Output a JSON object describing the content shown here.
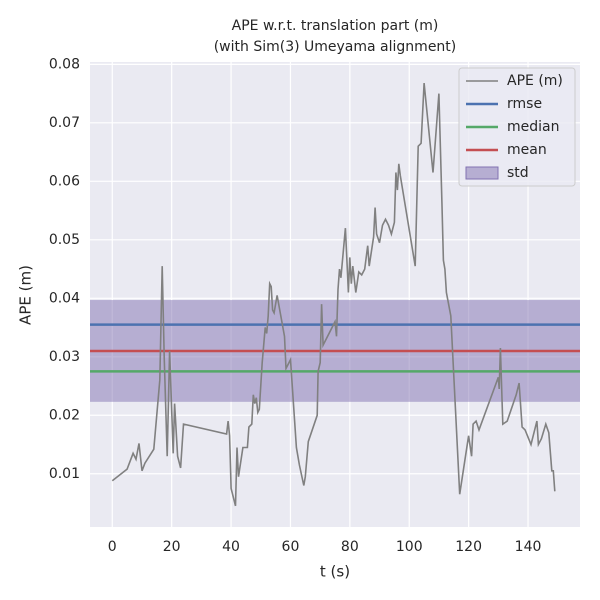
{
  "chart_data": {
    "type": "line",
    "title": "APE w.r.t. translation part (m)",
    "subtitle": "(with Sim(3) Umeyama alignment)",
    "xlabel": "t (s)",
    "ylabel": "APE (m)",
    "x": [
      0,
      5,
      7,
      8,
      9,
      10,
      11,
      14,
      16,
      16.8,
      17.5,
      18.5,
      19.3,
      20.5,
      21,
      22,
      23,
      24,
      38.5,
      39,
      39.5,
      40,
      41.5,
      42,
      42.5,
      44,
      45.5,
      46,
      47,
      47.5,
      48,
      48.5,
      49,
      49.5,
      50.5,
      51.5,
      52,
      52.5,
      53,
      53.5,
      54,
      54.5,
      55.5,
      58,
      58.5,
      60,
      62,
      63,
      64.5,
      65,
      66,
      69,
      69.3,
      70,
      70.5,
      71,
      75,
      75.5,
      76,
      76.5,
      77,
      78.5,
      79.5,
      80,
      80.5,
      81,
      82,
      83,
      84,
      85,
      86,
      86.5,
      88,
      88.5,
      89,
      90,
      91,
      92,
      93,
      94,
      95,
      95.5,
      96,
      96.5,
      97,
      102,
      103,
      104,
      105,
      108,
      110,
      111,
      111.5,
      112,
      112.5,
      114,
      117,
      120,
      121,
      121.5,
      122.5,
      123.5,
      130,
      130.3,
      130.7,
      131.5,
      133,
      136,
      137,
      138,
      139,
      141,
      143,
      143.5,
      144.5,
      146,
      147,
      148,
      148.5,
      149
    ],
    "series": [
      {
        "name": "APE (m)",
        "color": "#808080",
        "values": [
          0.0088,
          0.0108,
          0.0135,
          0.0125,
          0.0152,
          0.0105,
          0.0118,
          0.0142,
          0.026,
          0.0455,
          0.03,
          0.013,
          0.031,
          0.0135,
          0.022,
          0.013,
          0.011,
          0.0185,
          0.0168,
          0.019,
          0.0165,
          0.0075,
          0.0045,
          0.0145,
          0.0095,
          0.0145,
          0.0145,
          0.018,
          0.0185,
          0.0235,
          0.022,
          0.023,
          0.0205,
          0.021,
          0.029,
          0.035,
          0.034,
          0.037,
          0.0425,
          0.042,
          0.038,
          0.0375,
          0.0405,
          0.0335,
          0.028,
          0.0295,
          0.0145,
          0.0115,
          0.008,
          0.0095,
          0.0155,
          0.02,
          0.0275,
          0.029,
          0.039,
          0.032,
          0.036,
          0.0335,
          0.0415,
          0.045,
          0.0435,
          0.052,
          0.041,
          0.047,
          0.0425,
          0.0455,
          0.041,
          0.0445,
          0.044,
          0.045,
          0.049,
          0.0455,
          0.0505,
          0.0555,
          0.051,
          0.0495,
          0.0525,
          0.0535,
          0.0525,
          0.051,
          0.053,
          0.0615,
          0.0585,
          0.063,
          0.061,
          0.0455,
          0.066,
          0.0665,
          0.0768,
          0.0615,
          0.075,
          0.0565,
          0.0465,
          0.045,
          0.041,
          0.037,
          0.0065,
          0.0165,
          0.013,
          0.0185,
          0.019,
          0.0175,
          0.0265,
          0.0245,
          0.0315,
          0.0185,
          0.019,
          0.0235,
          0.0255,
          0.018,
          0.0175,
          0.015,
          0.019,
          0.015,
          0.016,
          0.0185,
          0.017,
          0.0105,
          0.0105,
          0.007
        ]
      },
      {
        "name": "rmse",
        "color": "#4c72b0",
        "value": 0.0355
      },
      {
        "name": "median",
        "color": "#55a868",
        "value": 0.0275
      },
      {
        "name": "mean",
        "color": "#c44e52",
        "value": 0.031
      },
      {
        "name": "std",
        "color": "#8172b2",
        "value": 0.0087
      }
    ],
    "xlim": [
      -7.5,
      157.5
    ],
    "ylim": [
      0.0009,
      0.0804
    ],
    "xticks": [
      0,
      20,
      40,
      60,
      80,
      100,
      120,
      140
    ],
    "yticks": [
      0.01,
      0.02,
      0.03,
      0.04,
      0.05,
      0.06,
      0.07,
      0.08
    ],
    "grid": true,
    "legend": "upper right"
  }
}
